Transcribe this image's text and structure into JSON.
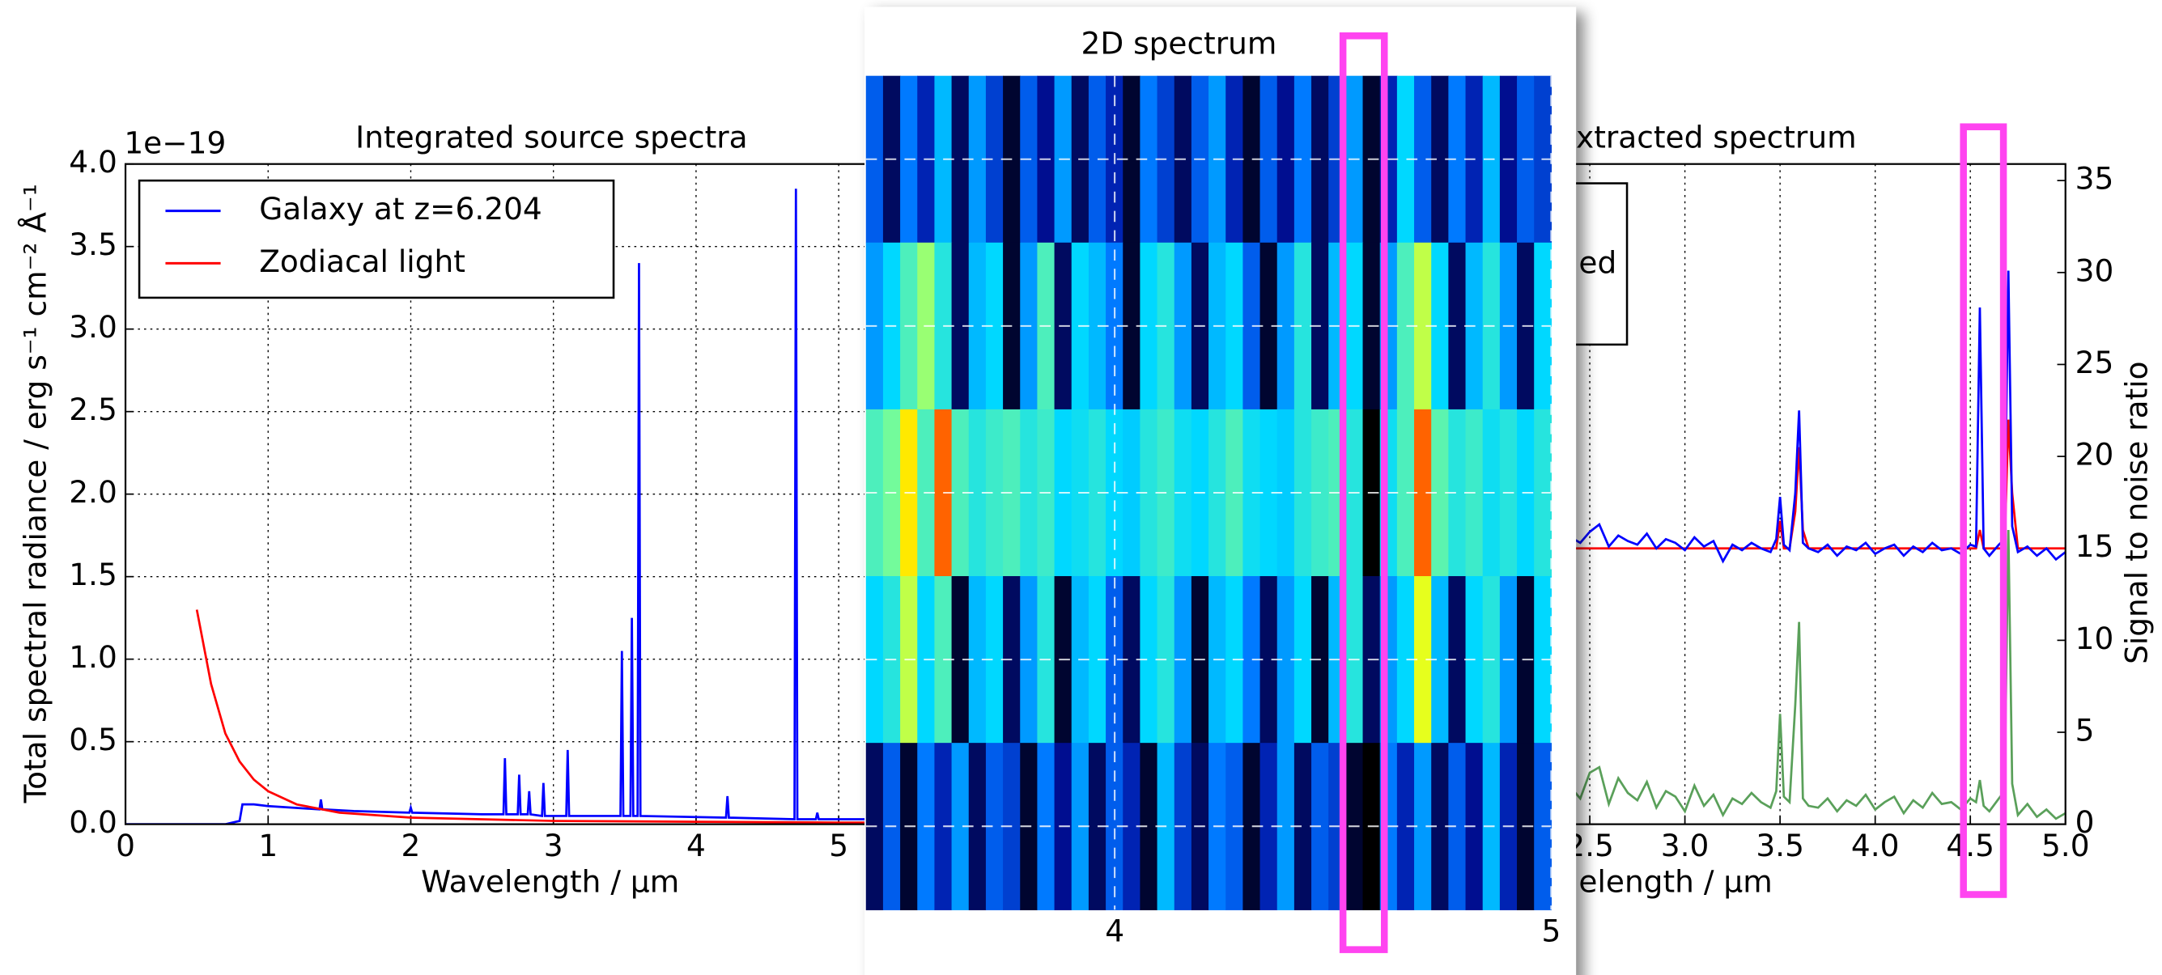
{
  "chart_data": [
    {
      "type": "line",
      "title": "Integrated source spectra",
      "y_multiplier": "1e−19",
      "ylabel": "Total spectral radiance / erg s⁻¹  cm⁻²  Å⁻¹",
      "xlabel": "Wavelength / μm",
      "xlim": [
        0,
        5.5
      ],
      "xticks": [
        0,
        1,
        2,
        3,
        4,
        5
      ],
      "ylim": [
        0,
        4
      ],
      "yticks": [
        {
          "value": 0,
          "label": "0.0"
        },
        0.5,
        {
          "value": 1,
          "label": "1.0"
        },
        1.5,
        {
          "value": 2,
          "label": "2.0"
        },
        2.5,
        {
          "value": 3,
          "label": "3.0"
        },
        3.5,
        {
          "value": 4,
          "label": "4.0"
        }
      ],
      "grid": true,
      "legend": "upper left",
      "series": [
        {
          "name": "Galaxy at z=6.204",
          "color": "#0000ff",
          "x": [
            0.0,
            0.7,
            0.8,
            0.82,
            0.9,
            1.0,
            1.36,
            1.37,
            1.38,
            1.6,
            1.99,
            2.0,
            2.01,
            2.5,
            2.65,
            2.66,
            2.67,
            2.75,
            2.76,
            2.77,
            2.82,
            2.83,
            2.84,
            2.92,
            2.93,
            2.94,
            3.09,
            3.1,
            3.11,
            3.47,
            3.48,
            3.49,
            3.54,
            3.55,
            3.56,
            3.59,
            3.6,
            3.61,
            4.21,
            4.22,
            4.23,
            4.69,
            4.7,
            4.71,
            4.84,
            4.85,
            4.86,
            5.5
          ],
          "values": [
            0.0,
            0.0,
            0.02,
            0.12,
            0.12,
            0.11,
            0.09,
            0.15,
            0.09,
            0.08,
            0.07,
            0.1,
            0.07,
            0.06,
            0.06,
            0.4,
            0.06,
            0.06,
            0.3,
            0.06,
            0.06,
            0.2,
            0.06,
            0.05,
            0.25,
            0.05,
            0.05,
            0.45,
            0.05,
            0.05,
            1.05,
            0.05,
            0.05,
            1.25,
            0.05,
            0.05,
            3.4,
            0.05,
            0.04,
            0.17,
            0.04,
            0.03,
            3.85,
            0.03,
            0.03,
            0.07,
            0.03,
            0.03
          ]
        },
        {
          "name": "Zodiacal light",
          "color": "#ff0000",
          "x": [
            0.5,
            0.6,
            0.7,
            0.8,
            0.9,
            1.0,
            1.2,
            1.5,
            2.0,
            3.0,
            4.0,
            5.0,
            5.5
          ],
          "values": [
            1.3,
            0.85,
            0.55,
            0.38,
            0.27,
            0.2,
            0.12,
            0.07,
            0.04,
            0.02,
            0.015,
            0.01,
            0.01
          ]
        }
      ]
    },
    {
      "type": "heatmap",
      "title": "2D spectrum",
      "xlim": [
        3.43,
        5.0
      ],
      "xticks": [
        4,
        5
      ],
      "colormap": [
        "#000000",
        "#0010a0",
        "#0070ff",
        "#00d8ff",
        "#80ff90",
        "#ffff00",
        "#ff2000"
      ],
      "values": [
        [
          0.3,
          0.1,
          0.35,
          0.2,
          0.45,
          0.1,
          0.4,
          0.25,
          0.05,
          0.3,
          0.15,
          0.4,
          0.1,
          0.3,
          0.2,
          0.05,
          0.35,
          0.25,
          0.1,
          0.3,
          0.4,
          0.2,
          0.05,
          0.3,
          0.15,
          0.35,
          0.1,
          0.25,
          0.4,
          0.05,
          0.2,
          0.5,
          0.3,
          0.1,
          0.35,
          0.2,
          0.45,
          0.15,
          0.3,
          0.25
        ],
        [
          0.4,
          0.5,
          0.6,
          0.7,
          0.55,
          0.1,
          0.45,
          0.5,
          0.05,
          0.4,
          0.6,
          0.1,
          0.5,
          0.45,
          0.35,
          0.05,
          0.5,
          0.55,
          0.4,
          0.1,
          0.45,
          0.5,
          0.3,
          0.05,
          0.4,
          0.55,
          0.1,
          0.45,
          0.5,
          0.05,
          0.4,
          0.6,
          0.75,
          0.5,
          0.1,
          0.45,
          0.55,
          0.4,
          0.1,
          0.5
        ],
        [
          0.6,
          0.65,
          0.85,
          0.6,
          0.95,
          0.6,
          0.55,
          0.58,
          0.6,
          0.55,
          0.58,
          0.5,
          0.52,
          0.55,
          0.5,
          0.48,
          0.55,
          0.58,
          0.52,
          0.5,
          0.55,
          0.6,
          0.52,
          0.5,
          0.48,
          0.55,
          0.58,
          0.6,
          0.55,
          0.0,
          0.52,
          0.6,
          0.95,
          0.62,
          0.55,
          0.58,
          0.52,
          0.55,
          0.5,
          0.55
        ],
        [
          0.5,
          0.55,
          0.75,
          0.5,
          0.6,
          0.05,
          0.45,
          0.5,
          0.1,
          0.4,
          0.55,
          0.05,
          0.45,
          0.5,
          0.3,
          0.1,
          0.5,
          0.55,
          0.4,
          0.05,
          0.45,
          0.5,
          0.35,
          0.1,
          0.4,
          0.5,
          0.05,
          0.45,
          0.55,
          0.1,
          0.4,
          0.5,
          0.8,
          0.45,
          0.1,
          0.5,
          0.55,
          0.4,
          0.05,
          0.5
        ],
        [
          0.1,
          0.3,
          0.05,
          0.35,
          0.2,
          0.4,
          0.1,
          0.3,
          0.25,
          0.05,
          0.35,
          0.15,
          0.4,
          0.1,
          0.3,
          0.2,
          0.05,
          0.45,
          0.25,
          0.1,
          0.35,
          0.3,
          0.05,
          0.2,
          0.4,
          0.1,
          0.3,
          0.25,
          0.05,
          0.0,
          0.35,
          0.2,
          0.4,
          0.1,
          0.3,
          0.15,
          0.45,
          0.2,
          0.05,
          0.3
        ]
      ]
    },
    {
      "type": "line",
      "title": "xtracted spectrum",
      "xlabel": "elength / μm",
      "y2label": "Signal to noise ratio",
      "y2label_color": "#2e9a2e",
      "legend_text": [
        "ed"
      ],
      "xlim": [
        2.0,
        5.0
      ],
      "xticks": [
        2.5,
        {
          "value": 3,
          "label": "3.0"
        },
        3.5,
        {
          "value": 4,
          "label": "4.0"
        },
        4.5,
        {
          "value": 5,
          "label": "5.0"
        }
      ],
      "y2lim": [
        0,
        35.9
      ],
      "y2ticks": [
        0,
        5,
        10,
        15,
        20,
        25,
        30,
        35
      ],
      "grid": true,
      "x": [
        2.0,
        2.05,
        2.1,
        2.15,
        2.2,
        2.25,
        2.3,
        2.35,
        2.4,
        2.45,
        2.5,
        2.55,
        2.6,
        2.65,
        2.7,
        2.75,
        2.8,
        2.85,
        2.9,
        2.95,
        3.0,
        3.05,
        3.1,
        3.15,
        3.2,
        3.25,
        3.3,
        3.35,
        3.4,
        3.45,
        3.48,
        3.5,
        3.52,
        3.55,
        3.58,
        3.6,
        3.62,
        3.65,
        3.7,
        3.75,
        3.8,
        3.85,
        3.9,
        3.95,
        4.0,
        4.05,
        4.1,
        4.15,
        4.2,
        4.25,
        4.3,
        4.35,
        4.4,
        4.45,
        4.5,
        4.53,
        4.55,
        4.57,
        4.6,
        4.65,
        4.68,
        4.7,
        4.72,
        4.75,
        4.8,
        4.85,
        4.9,
        4.95,
        5.0
      ],
      "series": [
        {
          "color": "#5aa05a",
          "axis": "y2",
          "values": [
            1.5,
            2.2,
            0.8,
            1.9,
            2.6,
            1.2,
            2.4,
            0.6,
            2.0,
            1.4,
            2.8,
            3.1,
            1.1,
            2.5,
            1.7,
            1.3,
            2.3,
            0.9,
            1.8,
            1.5,
            0.7,
            2.1,
            1.0,
            1.6,
            0.5,
            1.4,
            1.1,
            1.7,
            1.2,
            0.9,
            1.8,
            6.0,
            1.5,
            1.2,
            6.5,
            11.0,
            1.4,
            1.0,
            0.9,
            1.4,
            0.7,
            1.3,
            1.0,
            1.6,
            0.8,
            1.2,
            1.5,
            0.6,
            1.3,
            0.9,
            1.7,
            1.1,
            1.2,
            0.8,
            1.4,
            1.2,
            2.4,
            1.0,
            0.7,
            1.4,
            1.8,
            16.0,
            2.2,
            0.5,
            1.1,
            0.4,
            0.8,
            0.3,
            0.6
          ]
        },
        {
          "color": "#ff0000",
          "axis": "y2",
          "values": [
            15,
            15,
            15,
            15,
            15,
            15,
            15,
            15,
            15,
            15,
            15,
            15,
            15,
            15,
            15,
            15,
            15,
            15,
            15,
            15,
            15,
            15,
            15,
            15,
            15,
            15,
            15,
            15,
            15,
            15,
            15,
            16.5,
            15,
            15,
            17,
            20.5,
            16,
            15,
            15,
            15,
            15,
            15,
            15,
            15,
            15,
            15,
            15,
            15,
            15,
            15,
            15,
            15,
            15,
            15,
            15,
            15,
            16,
            15,
            15,
            15,
            15,
            22,
            18,
            15,
            15,
            15,
            15,
            15,
            15
          ]
        },
        {
          "color": "#0000ff",
          "axis": "y2",
          "values": [
            15.2,
            15.8,
            14.6,
            15.5,
            16.1,
            15.0,
            15.9,
            14.8,
            15.6,
            15.3,
            15.9,
            16.3,
            15.1,
            15.7,
            15.4,
            15.2,
            15.8,
            15.0,
            15.5,
            15.3,
            14.9,
            15.6,
            15.1,
            15.4,
            14.3,
            15.2,
            14.9,
            15.3,
            15.0,
            14.8,
            15.5,
            17.8,
            15.2,
            14.9,
            18.0,
            22.5,
            15.3,
            15.0,
            14.8,
            15.2,
            14.6,
            15.1,
            14.9,
            15.3,
            14.7,
            15.0,
            15.2,
            14.6,
            15.1,
            14.8,
            15.3,
            14.9,
            15.0,
            14.7,
            15.2,
            15.1,
            28.1,
            15.0,
            14.6,
            15.2,
            15.5,
            30.1,
            16.2,
            14.8,
            15.1,
            14.6,
            15.0,
            14.4,
            14.8
          ]
        }
      ]
    }
  ]
}
